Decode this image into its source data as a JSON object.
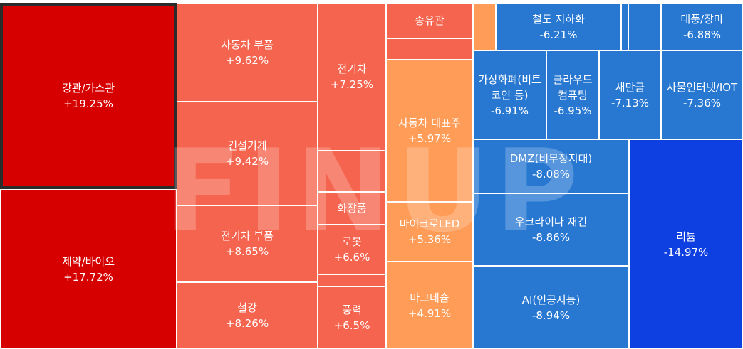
{
  "watermark": "FINUP",
  "chart_data": {
    "type": "treemap",
    "value_unit": "%",
    "sectors": [
      {
        "name": "강관/가스관",
        "label": "+19.25%",
        "value": 19.25,
        "color": "#d60000",
        "selected": true
      },
      {
        "name": "제약/바이오",
        "label": "+17.72%",
        "value": 17.72,
        "color": "#d60000"
      },
      {
        "name": "자동차 부품",
        "label": "+9.62%",
        "value": 9.62,
        "color": "#f5644e"
      },
      {
        "name": "건설기계",
        "label": "+9.42%",
        "value": 9.42,
        "color": "#f5644e"
      },
      {
        "name": "전기차 부품",
        "label": "+8.65%",
        "value": 8.65,
        "color": "#f5644e"
      },
      {
        "name": "철강",
        "label": "+8.26%",
        "value": 8.26,
        "color": "#f5644e"
      },
      {
        "name": "전기차",
        "label": "+7.25%",
        "value": 7.25,
        "color": "#f5644e"
      },
      {
        "name": "",
        "label": "",
        "value": null,
        "color": "#f5644e"
      },
      {
        "name": "화장품",
        "label": "",
        "value": null,
        "color": "#f5644e"
      },
      {
        "name": "로봇",
        "label": "+6.6%",
        "value": 6.6,
        "color": "#f5644e"
      },
      {
        "name": "",
        "label": "",
        "value": null,
        "color": "#f5644e"
      },
      {
        "name": "풍력",
        "label": "+6.5%",
        "value": 6.5,
        "color": "#f5644e"
      },
      {
        "name": "송유관",
        "label": "",
        "value": null,
        "color": "#f5644e"
      },
      {
        "name": "",
        "label": "",
        "value": null,
        "color": "#f5644e"
      },
      {
        "name": "자동차 대표주",
        "label": "+5.97%",
        "value": 5.97,
        "color": "#ff9c57"
      },
      {
        "name": "마이크로LED",
        "label": "+5.36%",
        "value": 5.36,
        "color": "#ff9c57"
      },
      {
        "name": "마그네슘",
        "label": "+4.91%",
        "value": 4.91,
        "color": "#ff9c57"
      },
      {
        "name": "",
        "label": "",
        "value": null,
        "color": "#ff9c57"
      },
      {
        "name": "철도 지하화",
        "label": "-6.21%",
        "value": -6.21,
        "color": "#2878d2"
      },
      {
        "name": "",
        "label": "",
        "value": null,
        "color": "#2878d2"
      },
      {
        "name": "",
        "label": "",
        "value": null,
        "color": "#2878d2"
      },
      {
        "name": "태풍/장마",
        "label": "-6.88%",
        "value": -6.88,
        "color": "#2878d2"
      },
      {
        "name": "가상화폐(비트코인 등)",
        "label": "-6.91%",
        "value": -6.91,
        "color": "#2878d2"
      },
      {
        "name": "클라우드 컴퓨팅",
        "label": "-6.95%",
        "value": -6.95,
        "color": "#2878d2"
      },
      {
        "name": "새만금",
        "label": "-7.13%",
        "value": -7.13,
        "color": "#2878d2"
      },
      {
        "name": "사물인터넷/IOT",
        "label": "-7.36%",
        "value": -7.36,
        "color": "#2878d2"
      },
      {
        "name": "DMZ(비무장지대)",
        "label": "-8.08%",
        "value": -8.08,
        "color": "#2878d2"
      },
      {
        "name": "우크라이나 재건",
        "label": "-8.86%",
        "value": -8.86,
        "color": "#2878d2"
      },
      {
        "name": "AI(인공지능)",
        "label": "-8.94%",
        "value": -8.94,
        "color": "#2878d2"
      },
      {
        "name": "리튬",
        "label": "-14.97%",
        "value": -14.97,
        "color": "#0e3fe0"
      }
    ]
  }
}
